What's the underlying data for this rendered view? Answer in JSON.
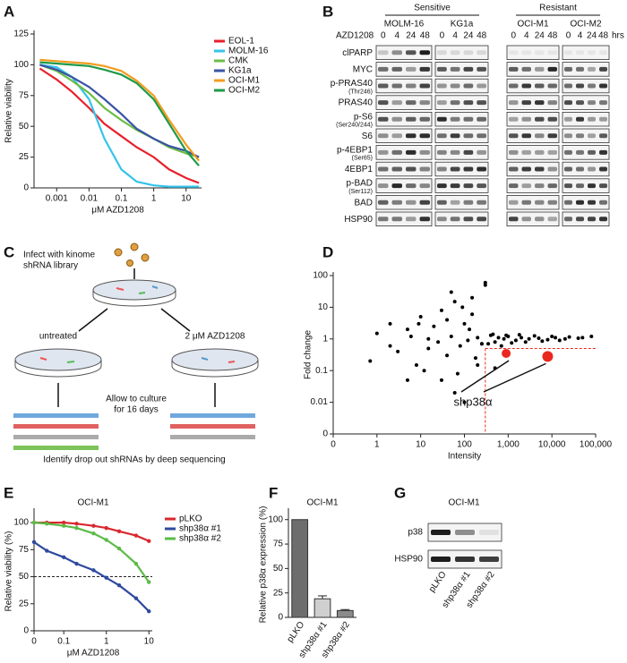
{
  "panel_labels": [
    "A",
    "B",
    "C",
    "D",
    "E",
    "F",
    "G"
  ],
  "chart_data": [
    {
      "type": "line",
      "x": [
        0.0003,
        0.001,
        0.003,
        0.01,
        0.03,
        0.1,
        0.3,
        1,
        3,
        10,
        25
      ],
      "xlog": true,
      "xlim": [
        0.0002,
        30
      ],
      "xticks": [
        0.001,
        0.01,
        0.1,
        1,
        10
      ],
      "ylim": [
        0,
        125
      ],
      "yticks": [
        0,
        25,
        50,
        75,
        100,
        125
      ],
      "xlabel": "μM AZD1208",
      "ylabel": "Relative viability",
      "legend": "right",
      "series": [
        {
          "name": "EOL-1",
          "color": "#e8202a",
          "values": [
            97,
            88,
            78,
            65,
            52,
            42,
            33,
            25,
            15,
            8,
            4
          ]
        },
        {
          "name": "MOLM-16",
          "color": "#35c3ea",
          "values": [
            100,
            98,
            90,
            72,
            40,
            15,
            5,
            2,
            1,
            1,
            1
          ]
        },
        {
          "name": "CMK",
          "color": "#6cbd45",
          "values": [
            100,
            95,
            87,
            77,
            65,
            55,
            47,
            40,
            33,
            28,
            25
          ]
        },
        {
          "name": "KG1a",
          "color": "#3a53a4",
          "values": [
            100,
            96,
            90,
            82,
            72,
            60,
            48,
            40,
            34,
            30,
            25
          ]
        },
        {
          "name": "OCI-M1",
          "color": "#f39c1f",
          "values": [
            104,
            103,
            102,
            101,
            99,
            95,
            87,
            75,
            55,
            35,
            22
          ]
        },
        {
          "name": "OCI-M2",
          "color": "#1e9a48",
          "values": [
            102,
            101,
            100,
            99,
            96,
            92,
            85,
            72,
            52,
            30,
            18
          ]
        }
      ]
    },
    {
      "type": "scatter",
      "xlog": true,
      "ylog": true,
      "xlim": [
        0.1,
        100000
      ],
      "ylim": [
        0.001,
        100
      ],
      "xticks": [
        {
          "value": 0.1,
          "label": "0"
        },
        1,
        10,
        100,
        {
          "value": 1000,
          "label": "1,000"
        },
        {
          "value": 10000,
          "label": "10,000"
        },
        {
          "value": 100000,
          "label": "100,000"
        }
      ],
      "yticks": [
        {
          "value": 0.001,
          "label": "0"
        },
        0.01,
        0.1,
        1,
        10,
        100
      ],
      "xlabel": "Intensity",
      "ylabel": "Fold change",
      "color": "#000000",
      "x": [
        0.7,
        1,
        2,
        3,
        5,
        8,
        10,
        15,
        20,
        30,
        40,
        50,
        60,
        80,
        100,
        120,
        150,
        200,
        250,
        300,
        400,
        500,
        600,
        800,
        1000,
        1500,
        2000,
        3000,
        5000,
        8000,
        12000,
        20000,
        40000,
        80000,
        30,
        50,
        70,
        100,
        150,
        200,
        300,
        500,
        15,
        25,
        40,
        60,
        90,
        130,
        180,
        250,
        2,
        5,
        12,
        6,
        9,
        350,
        450,
        700,
        900,
        1200,
        1800,
        2500,
        4000,
        6000,
        10000,
        15000,
        25000,
        50000
      ],
      "values": [
        0.2,
        1.5,
        3,
        0.4,
        2,
        0.15,
        5,
        0.5,
        2.5,
        8,
        0.3,
        1.2,
        15,
        0.6,
        3,
        0.9,
        20,
        1.1,
        0.7,
        50,
        1.3,
        0.8,
        1.1,
        1.0,
        1.2,
        0.9,
        1.1,
        1.0,
        1.05,
        0.95,
        1.1,
        1.0,
        1.05,
        1.2,
        0.05,
        30,
        0.08,
        0.01,
        6,
        0.15,
        60,
        0.12,
        1,
        0.8,
        4,
        0.02,
        10,
        2,
        0.25,
        0.7,
        0.6,
        0.05,
        0.1,
        1.2,
        3,
        0.7,
        1.4,
        0.6,
        1.3,
        0.75,
        1.35,
        0.8,
        1.25,
        0.85,
        1.2,
        0.9,
        1.15,
        1.1
      ],
      "highlight": {
        "color": "#e8281e",
        "x": [
          900,
          8000
        ],
        "values": [
          0.35,
          0.28
        ]
      },
      "reference_lines": {
        "x": 300,
        "y": 0.5,
        "color": "#e8281e"
      },
      "annotation": "shp38α"
    },
    {
      "type": "line",
      "title": "OCI-M1",
      "x": [
        0.02,
        0.04,
        0.1,
        0.2,
        0.5,
        1,
        2,
        5,
        10
      ],
      "xlog": true,
      "xlim": [
        0.02,
        12
      ],
      "xticks": [
        {
          "value": 0.02,
          "label": "0"
        },
        0.1,
        1,
        10
      ],
      "ylim": [
        0,
        110
      ],
      "yticks": [
        0,
        25,
        50,
        75,
        100
      ],
      "xlabel": "μM AZD1208",
      "ylabel": "Relative viability (%)",
      "legend": "right",
      "markers": true,
      "reference_lines": {
        "y": 50
      },
      "series": [
        {
          "name": "pLKO",
          "color": "#d9272e",
          "values": [
            100,
            100,
            100,
            99,
            97,
            95,
            92,
            88,
            83
          ]
        },
        {
          "name": "shp38α #1",
          "color": "#2f4a9e",
          "values": [
            82,
            74,
            68,
            62,
            56,
            49,
            42,
            30,
            18
          ]
        },
        {
          "name": "shp38α #2",
          "color": "#5bbb46",
          "values": [
            100,
            99,
            97,
            95,
            90,
            84,
            76,
            62,
            45
          ]
        }
      ]
    },
    {
      "type": "bar",
      "title": "OCI-M1",
      "categories": [
        "pLKO",
        "shp38α #1",
        "shp38α #2"
      ],
      "values": [
        100,
        19,
        7
      ],
      "errors": [
        0,
        3,
        1
      ],
      "colors": [
        "#6d6d6d",
        "#cfcfcf",
        "#8a8a8a"
      ],
      "ylim": [
        0,
        108
      ],
      "yticks": [
        0,
        25,
        50,
        75,
        100
      ],
      "ylabel": "Relative p38α expression (%)"
    }
  ],
  "blots": {
    "groups": [
      "Sensitive",
      "Resistant"
    ],
    "treatment": "AZD1208",
    "unit": "hrs",
    "cell_lines": [
      {
        "name": "MOLM-16",
        "times": [
          "0",
          "4",
          "24",
          "48"
        ]
      },
      {
        "name": "KG1a",
        "times": [
          "0",
          "4",
          "24",
          "48"
        ]
      },
      {
        "name": "OCI-M1",
        "times": [
          "0",
          "4",
          "24",
          "48"
        ]
      },
      {
        "name": "OCI-M2",
        "times": [
          "0",
          "4",
          "24",
          "48"
        ]
      }
    ],
    "rows": [
      {
        "label": "clPARP"
      },
      {
        "label": "MYC"
      },
      {
        "label": "p-PRAS40",
        "sub": "(Thr246)"
      },
      {
        "label": "PRAS40"
      },
      {
        "label": "p-S6",
        "sub": "(Ser240/244)"
      },
      {
        "label": "S6"
      },
      {
        "label": "p-4EBP1",
        "sub": "(Ser65)"
      },
      {
        "label": "4EBP1"
      },
      {
        "label": "p-BAD",
        "sub": "(Ser112)"
      },
      {
        "label": "BAD"
      },
      {
        "label": "HSP90"
      }
    ]
  },
  "schematic": {
    "infect": [
      "Infect with kinome",
      "shRNA library"
    ],
    "untreated": "untreated",
    "treated": "2 μM AZD1208",
    "culture": [
      "Allow to culture",
      "for 16 days"
    ],
    "sequencing": "Identify drop out shRNAs by deep sequencing"
  },
  "panel_g": {
    "title": "OCI-M1",
    "rows": [
      "p38",
      "HSP90"
    ],
    "lanes": [
      "pLKO",
      "shp38α #1",
      "shp38α #2"
    ]
  }
}
